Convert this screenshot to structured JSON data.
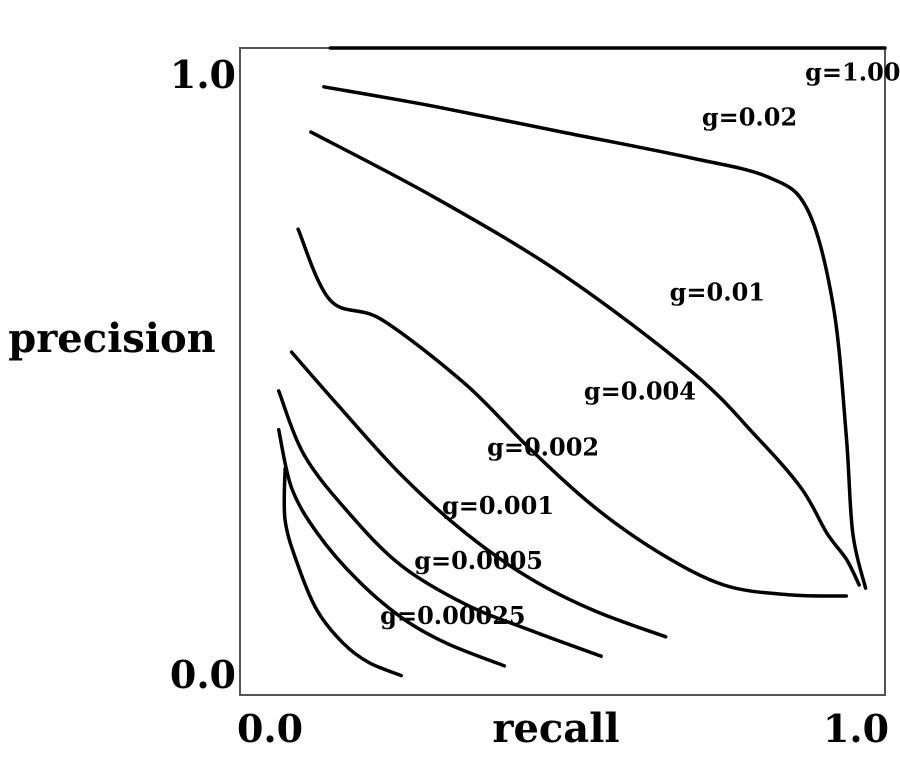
{
  "chart_data": {
    "type": "line",
    "xlabel": "recall",
    "ylabel": "precision",
    "xlim": [
      0.0,
      1.0
    ],
    "ylim": [
      0.0,
      1.0
    ],
    "x_ticks": [
      "0.0",
      "1.0"
    ],
    "y_ticks": [
      "0.0",
      "1.0"
    ],
    "grid": false,
    "legend": "none (curves labeled inline)",
    "series": [
      {
        "name": "g=1.00",
        "points": [
          [
            0.14,
            1.0
          ],
          [
            0.3,
            1.0
          ],
          [
            0.5,
            1.0
          ],
          [
            0.7,
            1.0
          ],
          [
            0.9,
            1.0
          ],
          [
            1.0,
            1.0
          ]
        ]
      },
      {
        "name": "g=0.02",
        "points": [
          [
            0.13,
            0.94
          ],
          [
            0.3,
            0.91
          ],
          [
            0.5,
            0.87
          ],
          [
            0.7,
            0.83
          ],
          [
            0.82,
            0.8
          ],
          [
            0.88,
            0.75
          ],
          [
            0.92,
            0.6
          ],
          [
            0.94,
            0.4
          ],
          [
            0.95,
            0.25
          ],
          [
            0.97,
            0.165
          ]
        ]
      },
      {
        "name": "g=0.01",
        "points": [
          [
            0.11,
            0.87
          ],
          [
            0.3,
            0.77
          ],
          [
            0.5,
            0.65
          ],
          [
            0.7,
            0.5
          ],
          [
            0.8,
            0.4
          ],
          [
            0.87,
            0.32
          ],
          [
            0.91,
            0.25
          ],
          [
            0.94,
            0.21
          ],
          [
            0.96,
            0.17
          ]
        ]
      },
      {
        "name": "g=0.004",
        "points": [
          [
            0.09,
            0.72
          ],
          [
            0.14,
            0.61
          ],
          [
            0.22,
            0.58
          ],
          [
            0.35,
            0.48
          ],
          [
            0.45,
            0.38
          ],
          [
            0.55,
            0.29
          ],
          [
            0.65,
            0.22
          ],
          [
            0.75,
            0.17
          ],
          [
            0.85,
            0.155
          ],
          [
            0.94,
            0.153
          ]
        ]
      },
      {
        "name": "g=0.002",
        "points": [
          [
            0.08,
            0.53
          ],
          [
            0.15,
            0.45
          ],
          [
            0.25,
            0.34
          ],
          [
            0.35,
            0.25
          ],
          [
            0.45,
            0.18
          ],
          [
            0.55,
            0.13
          ],
          [
            0.66,
            0.09
          ]
        ]
      },
      {
        "name": "g=0.001",
        "points": [
          [
            0.06,
            0.47
          ],
          [
            0.1,
            0.37
          ],
          [
            0.17,
            0.28
          ],
          [
            0.25,
            0.2
          ],
          [
            0.35,
            0.14
          ],
          [
            0.45,
            0.1
          ],
          [
            0.56,
            0.06
          ]
        ]
      },
      {
        "name": "g=0.0005",
        "points": [
          [
            0.06,
            0.41
          ],
          [
            0.08,
            0.32
          ],
          [
            0.12,
            0.25
          ],
          [
            0.18,
            0.18
          ],
          [
            0.25,
            0.12
          ],
          [
            0.32,
            0.08
          ],
          [
            0.41,
            0.045
          ]
        ]
      },
      {
        "name": "g=0.00025",
        "points": [
          [
            0.07,
            0.35
          ],
          [
            0.07,
            0.27
          ],
          [
            0.09,
            0.2
          ],
          [
            0.12,
            0.13
          ],
          [
            0.16,
            0.08
          ],
          [
            0.2,
            0.05
          ],
          [
            0.25,
            0.03
          ]
        ]
      }
    ],
    "inline_labels": [
      {
        "text": "g=1.00",
        "x": 0.95,
        "y": 0.95
      },
      {
        "text": "g=0.02",
        "x": 0.79,
        "y": 0.88
      },
      {
        "text": "g=0.01",
        "x": 0.74,
        "y": 0.61
      },
      {
        "text": "g=0.004",
        "x": 0.62,
        "y": 0.457
      },
      {
        "text": "g=0.002",
        "x": 0.47,
        "y": 0.37
      },
      {
        "text": "g=0.001",
        "x": 0.4,
        "y": 0.28
      },
      {
        "text": "g=0.0005",
        "x": 0.37,
        "y": 0.195
      },
      {
        "text": "g=0.00025",
        "x": 0.33,
        "y": 0.11
      }
    ]
  }
}
